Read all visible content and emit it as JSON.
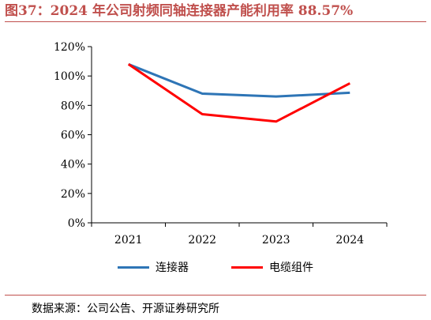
{
  "title": "图37：2024 年公司射频同轴连接器产能利用率 88.57%",
  "source": "数据来源：公司公告、开源证券研究所",
  "chart_data": {
    "type": "line",
    "categories": [
      "2021",
      "2022",
      "2023",
      "2024"
    ],
    "series": [
      {
        "name": "连接器",
        "color": "#2e75b6",
        "values": [
          108,
          88,
          86,
          88.57
        ]
      },
      {
        "name": "电缆组件",
        "color": "#ff0000",
        "values": [
          108,
          74,
          69,
          95
        ]
      }
    ],
    "ylim": [
      0,
      120
    ],
    "yticks": [
      0,
      20,
      40,
      60,
      80,
      100,
      120
    ],
    "ytick_labels": [
      "0%",
      "20%",
      "40%",
      "60%",
      "80%",
      "100%",
      "120%"
    ],
    "grid": false,
    "legend": "bottom"
  }
}
